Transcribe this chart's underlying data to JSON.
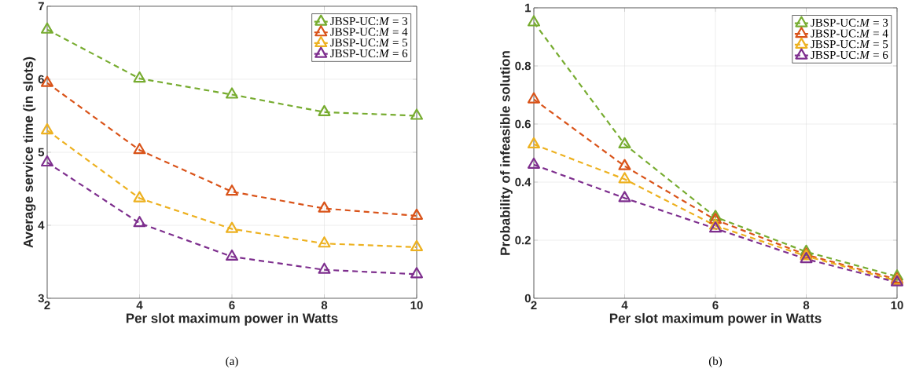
{
  "chart_data": [
    {
      "type": "line",
      "xlabel": "Per slot maximum power in Watts",
      "ylabel": "Average service time (in slots)",
      "x": [
        2,
        4,
        6,
        8,
        10
      ],
      "series": [
        {
          "name": "JBSP-UC:*M* = 3",
          "color": "#77ac30",
          "values": [
            6.68,
            6.01,
            5.79,
            5.55,
            5.5
          ]
        },
        {
          "name": "JBSP-UC:*M* = 4",
          "color": "#d95319",
          "values": [
            5.95,
            5.03,
            4.46,
            4.23,
            4.13
          ]
        },
        {
          "name": "JBSP-UC:*M* = 5",
          "color": "#edb120",
          "values": [
            5.3,
            4.37,
            3.95,
            3.75,
            3.7
          ]
        },
        {
          "name": "JBSP-UC:*M* = 6",
          "color": "#7e2f8e",
          "values": [
            4.86,
            4.03,
            3.57,
            3.39,
            3.33
          ]
        }
      ],
      "xlim": [
        2,
        10
      ],
      "ylim": [
        3,
        7
      ],
      "xticks": [
        2,
        4,
        6,
        8,
        10
      ],
      "yticks": [
        3,
        4,
        5,
        6,
        7
      ],
      "grid": true,
      "legend": "top right",
      "marker": "triangle",
      "line_style": "dashed",
      "annotations": [
        "(a)"
      ]
    },
    {
      "type": "line",
      "xlabel": "Per slot maximum power in Watts",
      "ylabel": "Probability of infeasible solution",
      "x": [
        2,
        4,
        6,
        8,
        10
      ],
      "series": [
        {
          "name": "JBSP-UC:*M* = 3",
          "color": "#77ac30",
          "values": [
            0.95,
            0.53,
            0.28,
            0.16,
            0.075
          ]
        },
        {
          "name": "JBSP-UC:*M* = 4",
          "color": "#d95319",
          "values": [
            0.685,
            0.455,
            0.27,
            0.15,
            0.065
          ]
        },
        {
          "name": "JBSP-UC:*M* = 5",
          "color": "#edb120",
          "values": [
            0.53,
            0.41,
            0.25,
            0.145,
            0.06
          ]
        },
        {
          "name": "JBSP-UC:*M* = 6",
          "color": "#7e2f8e",
          "values": [
            0.46,
            0.345,
            0.24,
            0.135,
            0.055
          ]
        }
      ],
      "xlim": [
        2,
        10
      ],
      "ylim": [
        0,
        1
      ],
      "xticks": [
        2,
        4,
        6,
        8,
        10
      ],
      "yticks": [
        0,
        0.2,
        0.4,
        0.6,
        0.8,
        1
      ],
      "grid": true,
      "legend": "top right",
      "marker": "triangle",
      "line_style": "dashed",
      "annotations": [
        "(b)"
      ]
    }
  ]
}
